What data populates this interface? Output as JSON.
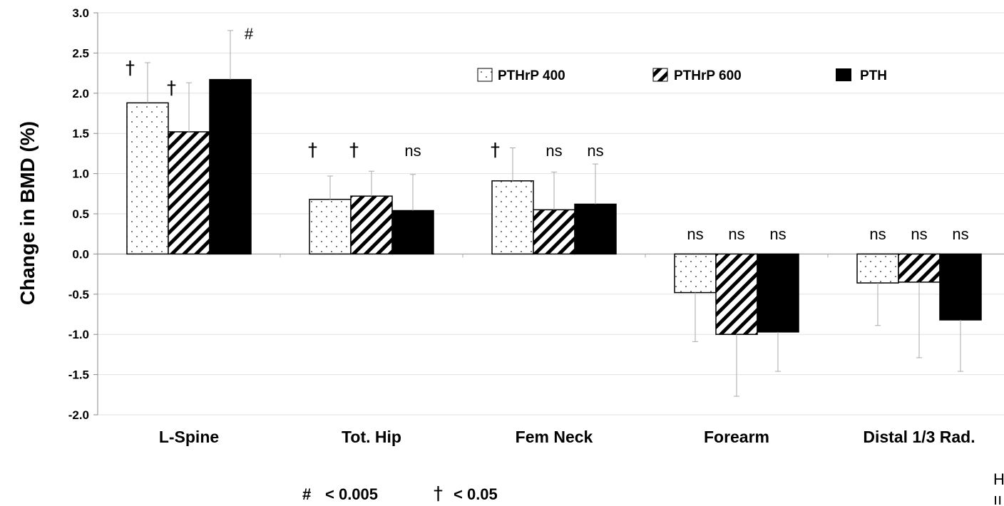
{
  "chart_data": {
    "type": "bar",
    "ylabel": "Change in BMD (%)",
    "xlabel": "",
    "ylim": [
      -2.0,
      3.0
    ],
    "ytick_step": 0.5,
    "yticks": [
      "3.0",
      "2.5",
      "2.0",
      "1.5",
      "1.0",
      "0.5",
      "0.0",
      "-0.5",
      "-1.0",
      "-1.5",
      "-2.0"
    ],
    "grid": true,
    "legend_position": "top-right",
    "categories": [
      "L-Spine",
      "Tot. Hip",
      "Fem Neck",
      "Forearm",
      "Distal  1/3 Rad."
    ],
    "series": [
      {
        "name": "PTHrP 400",
        "pattern": "dots",
        "color": "#ffffff",
        "values": [
          1.88,
          0.68,
          0.91,
          -0.48,
          -0.36
        ],
        "error": [
          0.5,
          0.29,
          0.41,
          0.61,
          0.53
        ],
        "annotations": [
          "†",
          "†",
          "†",
          "ns",
          "ns"
        ]
      },
      {
        "name": "PTHrP 600",
        "pattern": "hatch",
        "color": "#ffffff",
        "values": [
          1.52,
          0.72,
          0.55,
          -1.0,
          -0.35
        ],
        "error": [
          0.61,
          0.31,
          0.47,
          0.77,
          0.94
        ],
        "annotations": [
          "†",
          "†",
          "ns",
          "ns",
          "ns"
        ]
      },
      {
        "name": "PTH",
        "pattern": "solid",
        "color": "#000000",
        "values": [
          2.17,
          0.54,
          0.62,
          -0.97,
          -0.82
        ],
        "error": [
          0.61,
          0.45,
          0.5,
          0.49,
          0.64
        ],
        "annotations": [
          "#",
          "ns",
          "ns",
          "ns",
          "ns"
        ]
      }
    ],
    "footnote": {
      "hash_symbol": "#",
      "hash_text": "< 0.005",
      "dagger_symbol": "†",
      "dagger_text": "< 0.05"
    }
  },
  "edge_text": {
    "line1": "H",
    "line2": "ıı"
  }
}
